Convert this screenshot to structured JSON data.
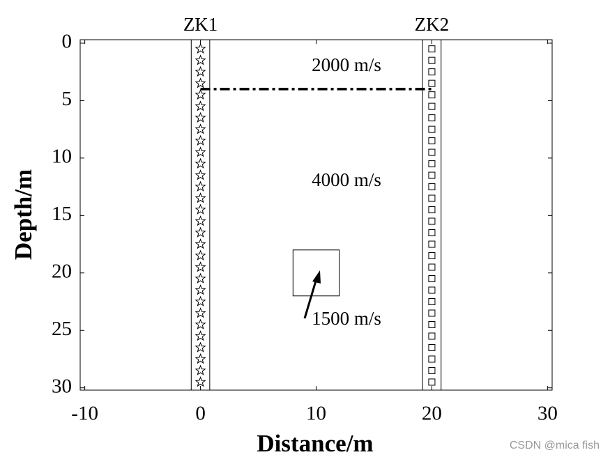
{
  "chart_data": {
    "type": "scatter",
    "xlabel": "Distance/m",
    "ylabel": "Depth/m",
    "xlim": [
      -10.4,
      30.4
    ],
    "ylim": [
      -0.3,
      30.2
    ],
    "y_reversed": true,
    "xticks": [
      -10,
      0,
      10,
      20,
      30
    ],
    "yticks": [
      0,
      5,
      10,
      15,
      20,
      25,
      30
    ],
    "series": [
      {
        "name": "ZK1",
        "marker": "star",
        "color": "#000000",
        "x": [
          0,
          0,
          0,
          0,
          0,
          0,
          0,
          0,
          0,
          0,
          0,
          0,
          0,
          0,
          0,
          0,
          0,
          0,
          0,
          0,
          0,
          0,
          0,
          0,
          0,
          0,
          0,
          0,
          0,
          0
        ],
        "values": [
          0.5,
          1.5,
          2.5,
          3.5,
          4.5,
          5.5,
          6.5,
          7.5,
          8.5,
          9.5,
          10.5,
          11.5,
          12.5,
          13.5,
          14.5,
          15.5,
          16.5,
          17.5,
          18.5,
          19.5,
          20.5,
          21.5,
          22.5,
          23.5,
          24.5,
          25.5,
          26.5,
          27.5,
          28.5,
          29.5
        ]
      },
      {
        "name": "ZK2",
        "marker": "square",
        "color": "#000000",
        "x": [
          20,
          20,
          20,
          20,
          20,
          20,
          20,
          20,
          20,
          20,
          20,
          20,
          20,
          20,
          20,
          20,
          20,
          20,
          20,
          20,
          20,
          20,
          20,
          20,
          20,
          20,
          20,
          20,
          20,
          20
        ],
        "values": [
          0.5,
          1.5,
          2.5,
          3.5,
          4.5,
          5.5,
          6.5,
          7.5,
          8.5,
          9.5,
          10.5,
          11.5,
          12.5,
          13.5,
          14.5,
          15.5,
          16.5,
          17.5,
          18.5,
          19.5,
          20.5,
          21.5,
          22.5,
          23.5,
          24.5,
          25.5,
          26.5,
          27.5,
          28.5,
          29.5
        ]
      }
    ],
    "boreholes": [
      [
        -0.8,
        0.8
      ],
      [
        19.2,
        20.8
      ]
    ],
    "interface": {
      "depth": 4,
      "x": [
        0,
        20
      ]
    },
    "anomaly": {
      "x": [
        8,
        12
      ],
      "y": [
        18,
        22
      ]
    },
    "annotations": [
      "2000 m/s",
      "4000 m/s",
      "1500 m/s"
    ]
  },
  "watermark": "CSDN @mica fish"
}
